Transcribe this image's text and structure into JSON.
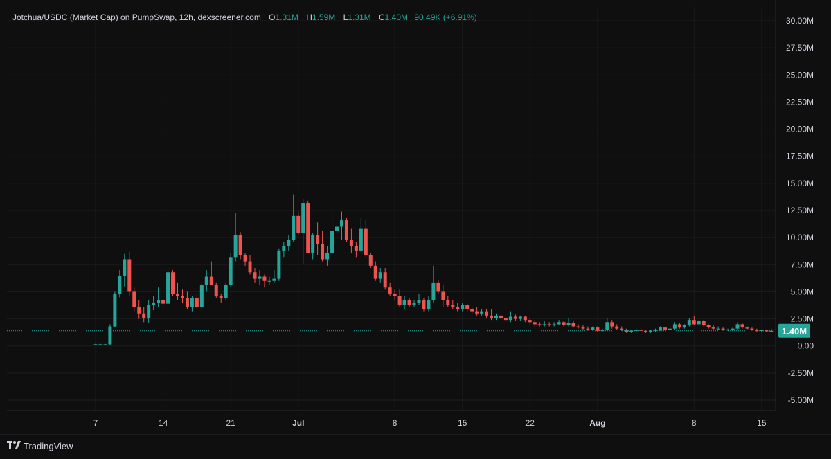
{
  "header": {
    "title": "Jotchua/USDC (Market Cap) on PumpSwap, 12h, dexscreener.com",
    "open_label": "O",
    "open_value": "1.31M",
    "high_label": "H",
    "high_value": "1.59M",
    "low_label": "L",
    "low_value": "1.31M",
    "close_label": "C",
    "close_value": "1.40M",
    "change": "90.49K (+6.91%)"
  },
  "footer": {
    "brand": "TradingView"
  },
  "colors": {
    "up": "#26a69a",
    "down": "#ef5350",
    "background": "#0f0f0f",
    "grid": "#1c1c1c",
    "text": "#d1d4dc"
  },
  "chart_data": {
    "type": "candlestick",
    "interval": "12h",
    "ylim": [
      -5.5,
      30.5
    ],
    "y_unit": "M",
    "y_ticks": [
      "30.00M",
      "27.50M",
      "25.00M",
      "22.50M",
      "20.00M",
      "17.50M",
      "15.00M",
      "12.50M",
      "10.00M",
      "7.50M",
      "5.00M",
      "2.50M",
      "0.00",
      "-2.50M",
      "-5.00M"
    ],
    "x_ticks": [
      "7",
      "14",
      "21",
      "Jul",
      "8",
      "15",
      "22",
      "Aug",
      "8",
      "15"
    ],
    "x_tick_index": [
      0,
      14,
      28,
      42,
      62,
      76,
      90,
      104,
      124,
      138
    ],
    "last_price": 1.4,
    "last_price_label": "1.40M",
    "candles": [
      [
        0.15,
        0.2,
        0.1,
        0.15
      ],
      [
        0.15,
        0.2,
        0.05,
        0.15
      ],
      [
        0.15,
        0.2,
        0.1,
        0.15
      ],
      [
        0.15,
        2.0,
        0.1,
        1.8
      ],
      [
        1.8,
        5.0,
        1.7,
        4.8
      ],
      [
        4.8,
        7.0,
        4.5,
        6.5
      ],
      [
        6.5,
        8.5,
        5.5,
        8.0
      ],
      [
        8.0,
        8.7,
        4.6,
        5.0
      ],
      [
        5.0,
        5.4,
        3.2,
        3.6
      ],
      [
        3.6,
        4.2,
        2.5,
        3.0
      ],
      [
        3.0,
        3.6,
        2.2,
        2.6
      ],
      [
        2.6,
        4.2,
        2.1,
        3.8
      ],
      [
        3.8,
        4.6,
        3.3,
        4.0
      ],
      [
        4.0,
        5.4,
        3.6,
        4.2
      ],
      [
        4.2,
        4.4,
        3.6,
        3.9
      ],
      [
        3.9,
        7.2,
        3.8,
        6.8
      ],
      [
        6.8,
        7.0,
        4.6,
        4.8
      ],
      [
        4.8,
        5.8,
        4.2,
        4.6
      ],
      [
        4.6,
        5.2,
        4.0,
        4.4
      ],
      [
        4.4,
        5.0,
        3.4,
        3.6
      ],
      [
        3.6,
        4.6,
        3.2,
        4.4
      ],
      [
        4.4,
        4.8,
        3.4,
        3.6
      ],
      [
        3.6,
        5.8,
        3.4,
        5.6
      ],
      [
        5.6,
        7.0,
        5.0,
        6.4
      ],
      [
        6.4,
        7.8,
        5.6,
        5.6
      ],
      [
        5.6,
        5.8,
        4.4,
        4.6
      ],
      [
        4.6,
        4.8,
        4.0,
        4.4
      ],
      [
        4.4,
        5.8,
        4.2,
        5.6
      ],
      [
        5.6,
        8.6,
        5.4,
        8.2
      ],
      [
        8.2,
        12.3,
        7.8,
        10.2
      ],
      [
        10.2,
        10.5,
        8.0,
        8.4
      ],
      [
        8.4,
        8.6,
        7.4,
        7.8
      ],
      [
        7.8,
        8.4,
        6.6,
        6.8
      ],
      [
        6.8,
        7.2,
        5.8,
        6.2
      ],
      [
        6.2,
        7.0,
        5.6,
        6.4
      ],
      [
        6.4,
        6.6,
        5.4,
        6.0
      ],
      [
        6.0,
        6.4,
        5.6,
        6.0
      ],
      [
        6.0,
        7.0,
        5.8,
        6.2
      ],
      [
        6.2,
        9.0,
        6.0,
        8.8
      ],
      [
        8.8,
        9.6,
        8.2,
        9.2
      ],
      [
        9.2,
        10.2,
        8.8,
        9.8
      ],
      [
        9.8,
        14.0,
        9.6,
        12.0
      ],
      [
        12.0,
        12.4,
        10.2,
        10.4
      ],
      [
        10.4,
        13.6,
        7.6,
        13.2
      ],
      [
        13.2,
        13.4,
        8.8,
        8.6
      ],
      [
        8.6,
        10.4,
        8.0,
        10.2
      ],
      [
        10.2,
        11.4,
        8.4,
        9.4
      ],
      [
        9.4,
        10.6,
        7.8,
        8.0
      ],
      [
        8.0,
        9.2,
        7.4,
        8.6
      ],
      [
        8.6,
        12.6,
        8.4,
        10.6
      ],
      [
        10.6,
        12.2,
        9.4,
        11.0
      ],
      [
        11.0,
        12.4,
        9.8,
        11.6
      ],
      [
        11.6,
        11.8,
        9.6,
        9.8
      ],
      [
        9.8,
        10.8,
        8.6,
        9.2
      ],
      [
        9.2,
        9.6,
        8.2,
        8.8
      ],
      [
        8.8,
        11.8,
        8.6,
        10.8
      ],
      [
        10.8,
        11.6,
        8.2,
        8.4
      ],
      [
        8.4,
        8.6,
        7.2,
        7.4
      ],
      [
        7.4,
        7.8,
        6.0,
        6.2
      ],
      [
        6.2,
        7.2,
        5.8,
        6.8
      ],
      [
        6.8,
        7.2,
        5.2,
        5.4
      ],
      [
        5.4,
        5.8,
        4.6,
        4.8
      ],
      [
        4.8,
        5.2,
        4.2,
        4.6
      ],
      [
        4.6,
        5.2,
        3.6,
        3.8
      ],
      [
        3.8,
        4.6,
        3.4,
        4.2
      ],
      [
        4.2,
        4.4,
        3.6,
        3.8
      ],
      [
        3.8,
        4.2,
        3.6,
        4.0
      ],
      [
        4.0,
        4.8,
        3.8,
        4.2
      ],
      [
        4.2,
        4.4,
        3.2,
        3.4
      ],
      [
        3.4,
        4.6,
        3.2,
        4.2
      ],
      [
        4.2,
        7.4,
        4.0,
        5.8
      ],
      [
        5.8,
        6.1,
        4.8,
        5.0
      ],
      [
        5.0,
        5.6,
        3.6,
        4.2
      ],
      [
        4.2,
        4.6,
        3.6,
        3.8
      ],
      [
        3.8,
        4.2,
        3.4,
        3.6
      ],
      [
        3.6,
        4.0,
        3.2,
        3.4
      ],
      [
        3.4,
        4.0,
        3.2,
        3.8
      ],
      [
        3.8,
        3.9,
        3.2,
        3.4
      ],
      [
        3.4,
        3.6,
        3.0,
        3.2
      ],
      [
        3.2,
        3.6,
        2.8,
        3.0
      ],
      [
        3.0,
        3.4,
        2.8,
        3.2
      ],
      [
        3.2,
        3.4,
        2.6,
        2.8
      ],
      [
        2.8,
        3.4,
        2.4,
        2.6
      ],
      [
        2.6,
        3.0,
        2.4,
        2.8
      ],
      [
        2.8,
        3.0,
        2.4,
        2.6
      ],
      [
        2.6,
        2.8,
        2.2,
        2.4
      ],
      [
        2.4,
        3.2,
        2.2,
        2.7
      ],
      [
        2.7,
        2.9,
        2.3,
        2.5
      ],
      [
        2.5,
        2.8,
        2.3,
        2.7
      ],
      [
        2.7,
        2.8,
        2.2,
        2.4
      ],
      [
        2.4,
        2.6,
        2.0,
        2.2
      ],
      [
        2.2,
        2.4,
        1.8,
        2.0
      ],
      [
        2.0,
        2.2,
        1.8,
        1.9
      ],
      [
        1.9,
        2.3,
        1.8,
        2.0
      ],
      [
        2.0,
        2.2,
        1.8,
        1.9
      ],
      [
        1.9,
        2.2,
        1.8,
        2.0
      ],
      [
        2.0,
        2.4,
        1.9,
        2.2
      ],
      [
        2.2,
        2.3,
        1.8,
        1.9
      ],
      [
        1.9,
        2.6,
        1.8,
        2.1
      ],
      [
        2.1,
        2.3,
        1.7,
        1.8
      ],
      [
        1.8,
        2.0,
        1.6,
        1.7
      ],
      [
        1.7,
        1.9,
        1.5,
        1.6
      ],
      [
        1.6,
        1.8,
        1.4,
        1.5
      ],
      [
        1.5,
        1.8,
        1.4,
        1.7
      ],
      [
        1.7,
        1.8,
        1.3,
        1.4
      ],
      [
        1.4,
        1.6,
        1.3,
        1.5
      ],
      [
        1.5,
        2.6,
        1.4,
        2.2
      ],
      [
        2.2,
        2.4,
        1.6,
        1.8
      ],
      [
        1.8,
        2.0,
        1.5,
        1.6
      ],
      [
        1.6,
        1.8,
        1.4,
        1.5
      ],
      [
        1.5,
        1.6,
        1.2,
        1.3
      ],
      [
        1.3,
        1.5,
        1.2,
        1.4
      ],
      [
        1.4,
        1.6,
        1.3,
        1.5
      ],
      [
        1.5,
        1.7,
        1.3,
        1.4
      ],
      [
        1.4,
        1.5,
        1.2,
        1.3
      ],
      [
        1.3,
        1.5,
        1.2,
        1.4
      ],
      [
        1.4,
        1.6,
        1.3,
        1.5
      ],
      [
        1.5,
        1.8,
        1.4,
        1.7
      ],
      [
        1.7,
        1.8,
        1.4,
        1.5
      ],
      [
        1.5,
        1.6,
        1.4,
        1.6
      ],
      [
        1.6,
        2.2,
        1.5,
        2.0
      ],
      [
        2.0,
        2.1,
        1.6,
        1.7
      ],
      [
        1.7,
        2.0,
        1.6,
        1.9
      ],
      [
        1.9,
        2.6,
        1.8,
        2.4
      ],
      [
        2.4,
        2.8,
        1.9,
        2.0
      ],
      [
        2.0,
        2.4,
        1.9,
        2.3
      ],
      [
        2.3,
        2.4,
        1.8,
        1.9
      ],
      [
        1.9,
        2.0,
        1.6,
        1.7
      ],
      [
        1.7,
        1.9,
        1.5,
        1.6
      ],
      [
        1.6,
        1.8,
        1.5,
        1.6
      ],
      [
        1.6,
        1.7,
        1.4,
        1.5
      ],
      [
        1.5,
        1.6,
        1.4,
        1.5
      ],
      [
        1.5,
        1.7,
        1.4,
        1.6
      ],
      [
        1.6,
        2.2,
        1.5,
        2.0
      ],
      [
        2.0,
        2.1,
        1.6,
        1.7
      ],
      [
        1.7,
        1.8,
        1.5,
        1.6
      ],
      [
        1.6,
        1.7,
        1.4,
        1.5
      ],
      [
        1.5,
        1.6,
        1.3,
        1.4
      ],
      [
        1.4,
        1.5,
        1.3,
        1.45
      ],
      [
        1.45,
        1.5,
        1.3,
        1.35
      ],
      [
        1.31,
        1.59,
        1.31,
        1.4
      ]
    ]
  }
}
